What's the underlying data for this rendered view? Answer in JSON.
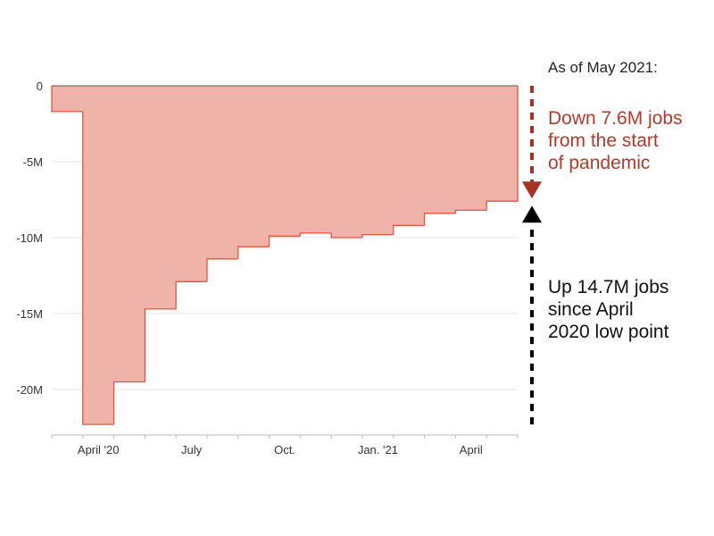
{
  "colors": {
    "area_fill": "#f0b3aa",
    "area_line": "#e5533f",
    "axis": "#bbbbbb",
    "grid": "#e6e6e6",
    "zero_line": "#555555",
    "down_arrow": "#a63223",
    "up_arrow": "#000000"
  },
  "annotations": {
    "heading": "As of May 2021:",
    "down_lines": [
      "Down 7.6M jobs",
      "from the start",
      "of pandemic"
    ],
    "up_lines": [
      "Up 14.7M jobs",
      "since April",
      "2020 low point"
    ],
    "down_arrow_icon": "arrow-down-icon",
    "up_arrow_icon": "arrow-up-icon"
  },
  "chart_data": {
    "type": "area",
    "step": true,
    "title": "",
    "xlabel": "",
    "ylabel": "",
    "x": [
      "Mar 2020",
      "Apr 2020",
      "May 2020",
      "Jun 2020",
      "Jul 2020",
      "Aug 2020",
      "Sep 2020",
      "Oct 2020",
      "Nov 2020",
      "Dec 2020",
      "Jan 2021",
      "Feb 2021",
      "Mar 2021",
      "Apr 2021",
      "May 2021"
    ],
    "series": [
      {
        "values": [
          -1.7,
          -22.3,
          -19.5,
          -14.7,
          -12.9,
          -11.4,
          -10.6,
          -9.9,
          -9.7,
          -10.0,
          -9.8,
          -9.2,
          -8.4,
          -8.2,
          -7.6
        ]
      }
    ],
    "x_tick_labels": [
      {
        "label": "April '20",
        "month": "Apr 2020"
      },
      {
        "label": "July",
        "month": "Jul 2020"
      },
      {
        "label": "Oct.",
        "month": "Oct 2020"
      },
      {
        "label": "Jan. '21",
        "month": "Jan 2021"
      },
      {
        "label": "April",
        "month": "Apr 2021"
      }
    ],
    "y_ticks": [
      0,
      -5,
      -10,
      -15,
      -20
    ],
    "y_tick_labels": [
      "0",
      "-5M",
      "-10M",
      "-15M",
      "-20M"
    ],
    "ylim": [
      -23.1,
      0
    ],
    "grid": true,
    "legend": "none"
  }
}
